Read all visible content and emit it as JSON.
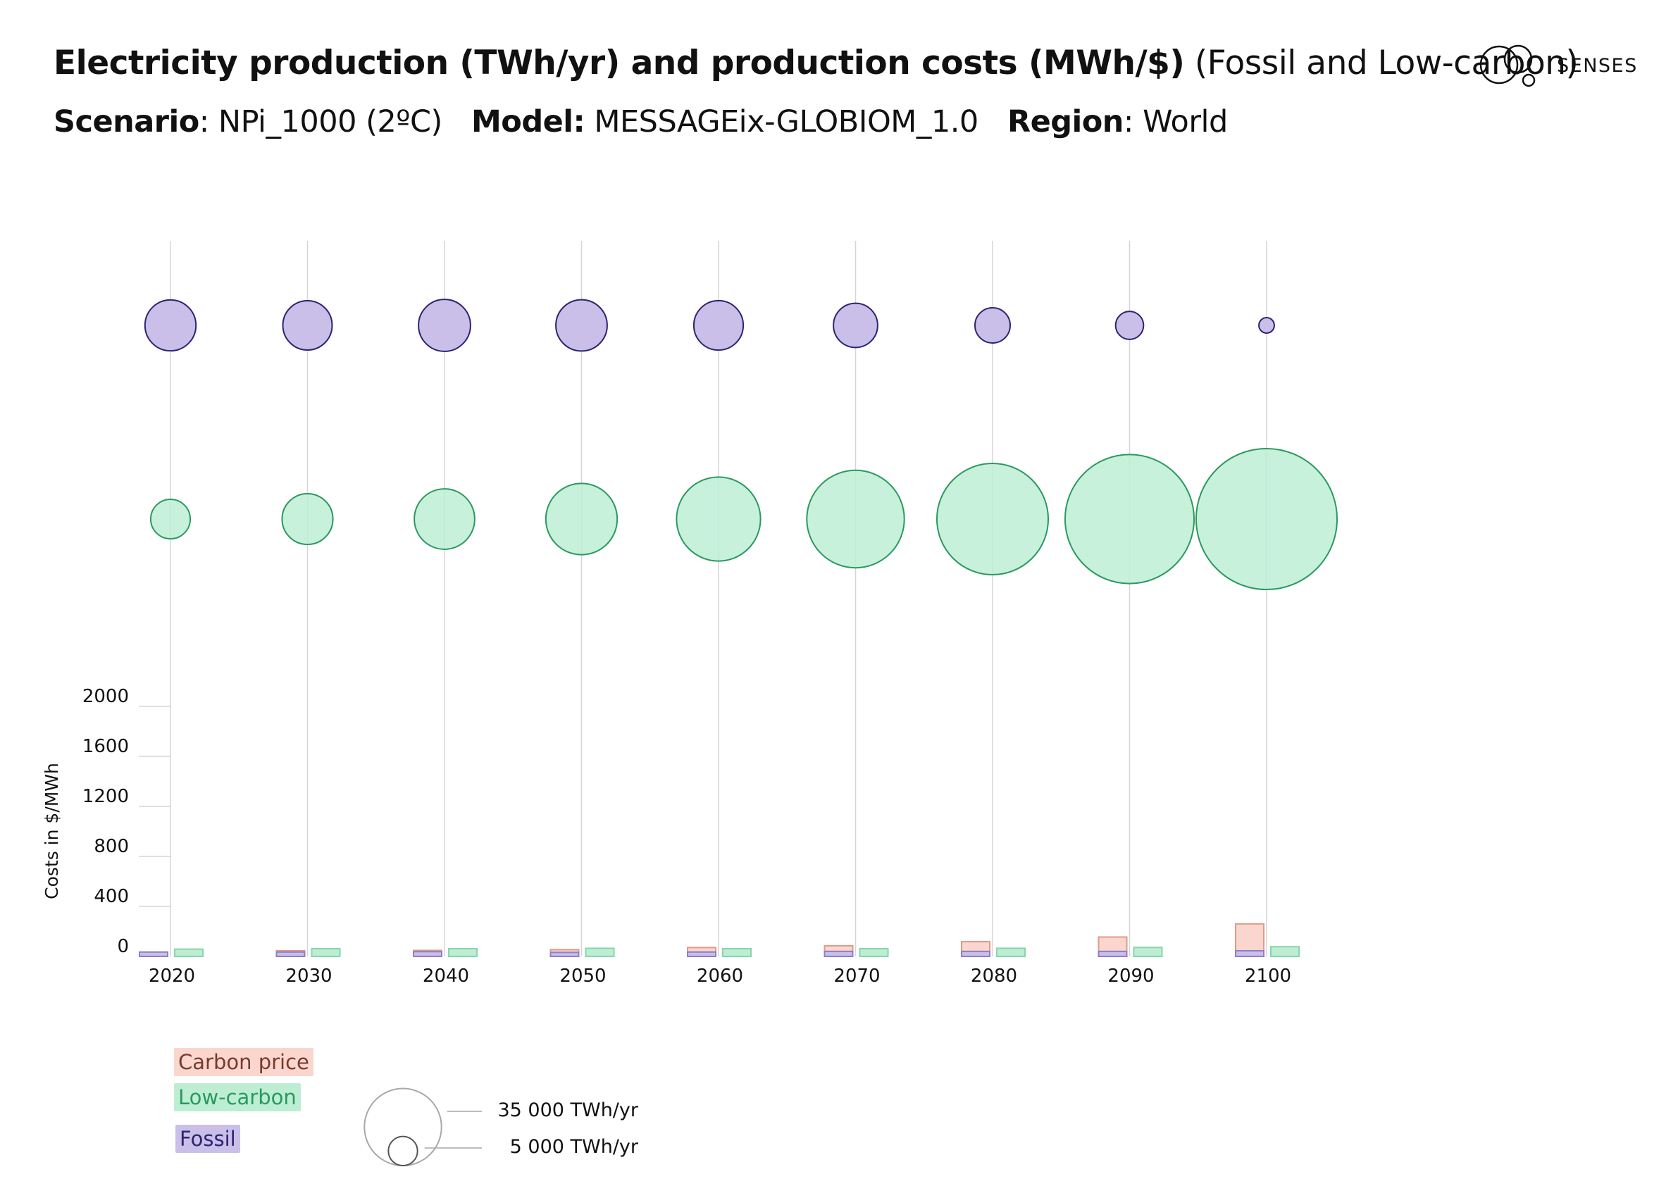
{
  "header": {
    "title_bold": "Electricity production (TWh/yr) and production costs (MWh/$)",
    "title_light": "(Fossil and Low-carbon)",
    "scenario_label": "Scenario",
    "scenario_value": "NPi_1000 (2ºC)",
    "model_label": "Model:",
    "model_value": "MESSAGEix-GLOBIOM_1.0",
    "region_label": "Region",
    "region_value": "World"
  },
  "logo": {
    "text": "SENSES",
    "icon": "senses-circles-logo-icon"
  },
  "colors": {
    "fossil_fill": "#c9bfe8",
    "fossil_stroke": "#2e2470",
    "lowcarbon_fill": "#bdeed3",
    "lowcarbon_stroke": "#2b9960",
    "carbon_fill": "#fbd6ce",
    "carbon_stroke": "#e29a86",
    "grid": "#d6d6d6"
  },
  "legend": {
    "carbon_price": "Carbon price",
    "low_carbon": "Low-carbon",
    "fossil": "Fossil",
    "size_large": "35 000 TWh/yr",
    "size_small": "5 000 TWh/yr"
  },
  "chart_data": {
    "type": "bubble-bar",
    "x": [
      "2020",
      "2030",
      "2040",
      "2050",
      "2060",
      "2070",
      "2080",
      "2090",
      "2100"
    ],
    "bubble_scale": [
      {
        "label": "35 000 TWh/yr",
        "value": 35000
      },
      {
        "label": "5 000 TWh/yr",
        "value": 5000
      }
    ],
    "series_bubbles": [
      {
        "name": "Fossil",
        "unit": "TWh/yr",
        "values": [
          15300,
          14300,
          15900,
          15500,
          14400,
          11500,
          7300,
          4600,
          1400
        ]
      },
      {
        "name": "Low-carbon",
        "unit": "TWh/yr",
        "values": [
          9200,
          15200,
          21500,
          30000,
          41500,
          56000,
          73000,
          98000,
          117000
        ]
      }
    ],
    "series_bars": [
      {
        "name": "Fossil",
        "values": [
          35,
          35,
          38,
          32,
          35,
          40,
          40,
          40,
          45
        ]
      },
      {
        "name": "Carbon price",
        "values": [
          0,
          10,
          10,
          22,
          36,
          45,
          78,
          115,
          215
        ]
      },
      {
        "name": "Low-carbon",
        "values": [
          58,
          62,
          62,
          65,
          62,
          62,
          65,
          72,
          78
        ]
      }
    ],
    "ylabel": "Costs in $/MWh",
    "yticks": [
      0,
      400,
      800,
      1200,
      1600,
      2000
    ],
    "ylim": [
      0,
      2000
    ],
    "grid": true
  }
}
